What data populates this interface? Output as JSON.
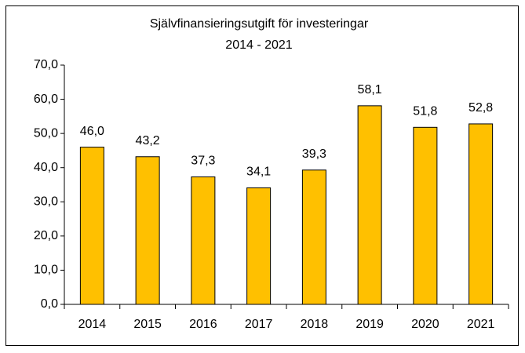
{
  "chart_data": {
    "type": "bar",
    "title": "Självfinansieringsutgift för investeringar",
    "subtitle": "2014 - 2021",
    "categories": [
      "2014",
      "2015",
      "2016",
      "2017",
      "2018",
      "2019",
      "2020",
      "2021"
    ],
    "values": [
      46.0,
      43.2,
      37.3,
      34.1,
      39.3,
      58.1,
      51.8,
      52.8
    ],
    "value_labels": [
      "46,0",
      "43,2",
      "37,3",
      "34,1",
      "39,3",
      "58,1",
      "51,8",
      "52,8"
    ],
    "color": "#ffc000",
    "ylim": [
      0,
      70
    ],
    "yticks": [
      {
        "value": 0,
        "label": "0,0"
      },
      {
        "value": 10,
        "label": "10,0"
      },
      {
        "value": 20,
        "label": "20,0"
      },
      {
        "value": 30,
        "label": "30,0"
      },
      {
        "value": 40,
        "label": "40,0"
      },
      {
        "value": 50,
        "label": "50,0"
      },
      {
        "value": 60,
        "label": "60,0"
      },
      {
        "value": 70,
        "label": "70,0"
      }
    ],
    "grid": false
  }
}
